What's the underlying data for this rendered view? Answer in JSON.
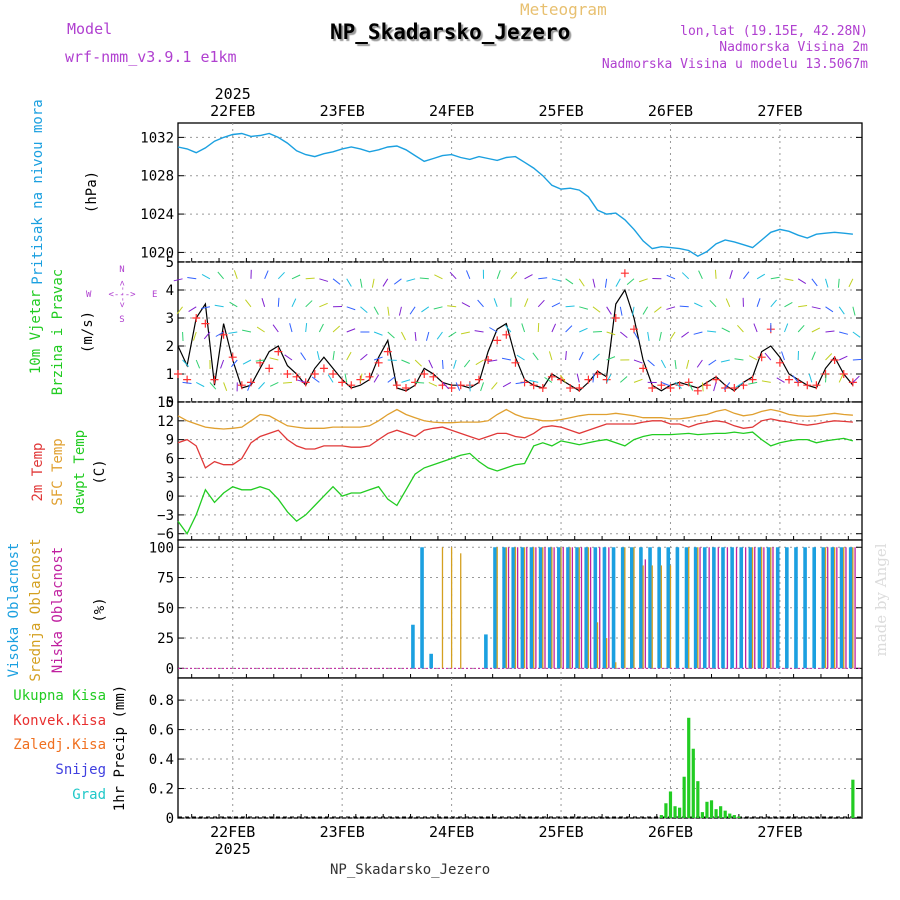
{
  "header": {
    "model_label": "Model",
    "model_name": "wrf-nmm_v3.9.1 e1km",
    "meteogram": "Meteogram",
    "station": "NP_Skadarsko_Jezero",
    "lonlat": "lon,lat (19.15E, 42.28N)",
    "elevation": "Nadmorska Visina 2m",
    "model_elevation": "Nadmorska Visina u modelu 13.5067m"
  },
  "footer_station": "NP_Skadarsko_Jezero",
  "credit": "made by Angel",
  "colors": {
    "pressure": "#1ba0e0",
    "wind_speed": "#000000",
    "gust": "#ff3030",
    "t2m": "#e03838",
    "sfc": "#e0a030",
    "dewpt": "#22cc22",
    "high_cloud": "#1ba0e0",
    "mid_cloud": "#d4a020",
    "low_cloud": "#c020a0",
    "precip": "#22cc22",
    "convective": "#e83030",
    "freezing": "#f07020",
    "snow": "#4040e0",
    "hail": "#20c8c8"
  },
  "chart_data": [
    {
      "type": "line",
      "title": "Pritisak na nivou mora",
      "ylabel": "(hPa)",
      "ylim": [
        1019,
        1033.5
      ],
      "yticks": [
        "1020",
        "1024",
        "1028",
        "1032"
      ],
      "top_xtick_labels": [
        "22FEB",
        "23FEB",
        "24FEB",
        "25FEB",
        "26FEB",
        "27FEB"
      ],
      "top_year": "2025",
      "x_unit": "hours from 21 FEB 2025 12 UTC",
      "x": [
        0,
        2,
        4,
        6,
        8,
        10,
        12,
        14,
        16,
        18,
        20,
        22,
        24,
        26,
        28,
        30,
        32,
        34,
        36,
        38,
        40,
        42,
        44,
        46,
        48,
        50,
        52,
        54,
        56,
        58,
        60,
        62,
        64,
        66,
        68,
        70,
        72,
        74,
        76,
        78,
        80,
        82,
        84,
        86,
        88,
        90,
        92,
        94,
        96,
        98,
        100,
        102,
        104,
        106,
        108,
        110,
        112,
        114,
        116,
        118,
        120,
        122,
        124,
        126,
        128,
        130,
        132,
        134,
        136,
        138,
        140,
        142,
        144,
        146,
        148
      ],
      "series": [
        {
          "name": "",
          "values": [
            1031.0,
            1030.8,
            1030.4,
            1030.9,
            1031.6,
            1032.0,
            1032.3,
            1032.4,
            1032.1,
            1032.2,
            1032.4,
            1032.0,
            1031.4,
            1030.6,
            1030.2,
            1030.0,
            1030.3,
            1030.5,
            1030.8,
            1031.0,
            1030.8,
            1030.5,
            1030.7,
            1031.0,
            1031.1,
            1030.7,
            1030.1,
            1029.5,
            1029.8,
            1030.1,
            1030.2,
            1029.9,
            1029.7,
            1030.0,
            1029.8,
            1029.6,
            1029.9,
            1030.0,
            1029.4,
            1028.8,
            1028.0,
            1027.0,
            1026.6,
            1026.7,
            1026.5,
            1025.8,
            1024.4,
            1024.0,
            1024.1,
            1023.4,
            1022.4,
            1021.2,
            1020.4,
            1020.6,
            1020.5,
            1020.4,
            1020.2,
            1019.6,
            1020.1,
            1020.9,
            1021.3,
            1021.1,
            1020.8,
            1020.5,
            1021.3,
            1022.1,
            1022.4,
            1022.2,
            1021.8,
            1021.5,
            1021.9,
            1022.0,
            1022.1,
            1022.0,
            1021.9
          ]
        }
      ]
    },
    {
      "type": "line",
      "title": "10m Vjetar Brzina i Pravac",
      "ylabel": "(m/s)",
      "compass": [
        "N",
        "W",
        "E",
        "S"
      ],
      "compass_sep": "<--->",
      "ylim": [
        0,
        5
      ],
      "yticks": [
        "0",
        "1",
        "2",
        "3",
        "4",
        "5"
      ],
      "x": [
        0,
        2,
        4,
        6,
        8,
        10,
        12,
        14,
        16,
        18,
        20,
        22,
        24,
        26,
        28,
        30,
        32,
        34,
        36,
        38,
        40,
        42,
        44,
        46,
        48,
        50,
        52,
        54,
        56,
        58,
        60,
        62,
        64,
        66,
        68,
        70,
        72,
        74,
        76,
        78,
        80,
        82,
        84,
        86,
        88,
        90,
        92,
        94,
        96,
        98,
        100,
        102,
        104,
        106,
        108,
        110,
        112,
        114,
        116,
        118,
        120,
        122,
        124,
        126,
        128,
        130,
        132,
        134,
        136,
        138,
        140,
        142,
        144,
        146,
        148
      ],
      "series": [
        {
          "name": "speed",
          "values": [
            2.0,
            1.3,
            3.0,
            3.5,
            0.6,
            2.8,
            1.5,
            0.5,
            0.6,
            1.2,
            1.8,
            2.0,
            1.3,
            1.0,
            0.6,
            1.2,
            1.6,
            1.2,
            0.8,
            0.5,
            0.6,
            0.8,
            1.6,
            2.2,
            0.5,
            0.4,
            0.6,
            1.2,
            1.0,
            0.7,
            0.6,
            0.6,
            0.5,
            0.7,
            1.8,
            2.6,
            2.8,
            1.6,
            0.8,
            0.6,
            0.5,
            1.0,
            0.8,
            0.6,
            0.4,
            0.7,
            1.1,
            0.9,
            3.5,
            4.0,
            3.0,
            1.5,
            0.6,
            0.4,
            0.6,
            0.7,
            0.6,
            0.5,
            0.7,
            0.9,
            0.6,
            0.4,
            0.7,
            0.9,
            1.8,
            2.0,
            1.6,
            1.0,
            0.8,
            0.6,
            0.5,
            1.2,
            1.6,
            1.0,
            0.6
          ]
        },
        {
          "name": "gust",
          "values": [
            1.0,
            0.8,
            3.0,
            2.8,
            0.8,
            2.4,
            1.6,
            0.6,
            0.7,
            1.4,
            1.2,
            1.8,
            1.0,
            0.9,
            0.7,
            1.0,
            1.2,
            1.0,
            0.7,
            0.6,
            0.8,
            0.9,
            1.4,
            1.8,
            0.6,
            0.5,
            0.7,
            1.0,
            0.9,
            0.6,
            0.5,
            0.6,
            0.6,
            0.8,
            1.5,
            2.2,
            2.4,
            1.4,
            0.7,
            0.6,
            0.5,
            0.9,
            0.8,
            0.5,
            0.5,
            0.8,
            1.0,
            0.8,
            3.0,
            4.6,
            2.6,
            1.2,
            0.5,
            0.6,
            0.5,
            0.6,
            0.7,
            0.4,
            0.6,
            0.8,
            0.5,
            0.5,
            0.6,
            0.8,
            1.6,
            2.6,
            1.4,
            0.8,
            0.7,
            0.6,
            0.6,
            1.0,
            1.5,
            1.0,
            0.7
          ]
        }
      ]
    },
    {
      "type": "line",
      "ylabel": "(C)",
      "ylim": [
        -7,
        15
      ],
      "yticks": [
        "−6",
        "−3",
        "0",
        "3",
        "6",
        "9",
        "12",
        "15"
      ],
      "x": [
        0,
        2,
        4,
        6,
        8,
        10,
        12,
        14,
        16,
        18,
        20,
        22,
        24,
        26,
        28,
        30,
        32,
        34,
        36,
        38,
        40,
        42,
        44,
        46,
        48,
        50,
        52,
        54,
        56,
        58,
        60,
        62,
        64,
        66,
        68,
        70,
        72,
        74,
        76,
        78,
        80,
        82,
        84,
        86,
        88,
        90,
        92,
        94,
        96,
        98,
        100,
        102,
        104,
        106,
        108,
        110,
        112,
        114,
        116,
        118,
        120,
        122,
        124,
        126,
        128,
        130,
        132,
        134,
        136,
        138,
        140,
        142,
        144,
        146,
        148
      ],
      "series": [
        {
          "name": "2m Temp",
          "values": [
            8.5,
            9.0,
            8.0,
            4.5,
            5.5,
            5.0,
            5.0,
            6.0,
            8.5,
            9.5,
            10.0,
            10.5,
            9.0,
            8.0,
            7.5,
            7.5,
            8.0,
            8.0,
            8.0,
            7.8,
            7.8,
            8.0,
            9.0,
            10.0,
            10.5,
            10.0,
            9.5,
            10.5,
            10.8,
            11.0,
            10.5,
            10.0,
            9.5,
            9.0,
            9.5,
            10.0,
            10.0,
            9.5,
            9.3,
            10.0,
            11.0,
            11.2,
            11.0,
            10.5,
            10.0,
            10.5,
            11.0,
            11.5,
            11.5,
            11.5,
            11.5,
            11.8,
            12.0,
            12.0,
            11.5,
            11.5,
            11.0,
            11.5,
            11.8,
            12.0,
            11.8,
            11.2,
            10.8,
            11.0,
            12.0,
            12.3,
            12.0,
            11.8,
            11.5,
            11.3,
            11.5,
            11.8,
            12.0,
            11.9,
            11.8
          ]
        },
        {
          "name": "SFC Temp",
          "values": [
            12.8,
            12.0,
            11.5,
            11.0,
            10.8,
            10.7,
            10.8,
            11.0,
            12.0,
            13.0,
            12.8,
            12.0,
            11.2,
            11.0,
            10.8,
            10.8,
            10.8,
            11.0,
            11.0,
            11.0,
            11.0,
            11.2,
            12.0,
            13.0,
            13.8,
            13.0,
            12.5,
            12.0,
            11.8,
            11.7,
            11.7,
            11.8,
            11.8,
            11.8,
            12.0,
            13.0,
            13.8,
            13.0,
            12.5,
            12.3,
            12.0,
            12.0,
            12.2,
            12.5,
            12.8,
            13.0,
            13.0,
            13.0,
            13.2,
            13.0,
            12.8,
            12.5,
            12.5,
            12.5,
            12.3,
            12.3,
            12.5,
            12.8,
            13.0,
            13.5,
            13.8,
            13.2,
            12.8,
            13.0,
            13.5,
            13.8,
            13.5,
            13.0,
            12.8,
            12.7,
            12.8,
            13.0,
            13.2,
            13.0,
            12.9
          ]
        },
        {
          "name": "dewpt Temp",
          "values": [
            -4.0,
            -6.0,
            -3.0,
            1.0,
            -1.0,
            0.5,
            1.5,
            1.0,
            1.0,
            1.5,
            1.0,
            -0.5,
            -2.5,
            -4.0,
            -3.0,
            -1.5,
            0.0,
            1.5,
            0.0,
            0.5,
            0.5,
            1.0,
            1.5,
            -0.5,
            -1.5,
            1.0,
            3.5,
            4.5,
            5.0,
            5.5,
            6.0,
            6.5,
            6.8,
            5.5,
            4.5,
            4.0,
            4.5,
            5.0,
            5.2,
            8.0,
            8.5,
            8.0,
            8.8,
            8.5,
            8.2,
            8.5,
            8.8,
            9.0,
            8.5,
            8.0,
            9.0,
            9.5,
            9.8,
            9.8,
            9.8,
            9.9,
            10.0,
            9.8,
            9.9,
            10.0,
            10.0,
            10.2,
            10.0,
            10.2,
            9.0,
            8.0,
            8.5,
            8.8,
            9.0,
            9.0,
            8.5,
            8.8,
            9.0,
            9.2,
            8.8
          ]
        }
      ]
    },
    {
      "type": "bar",
      "ylabel": "(%)",
      "ylim": [
        -8,
        106
      ],
      "yticks": [
        "0",
        "25",
        "50",
        "75",
        "100"
      ],
      "x": [
        0,
        2,
        4,
        6,
        8,
        10,
        12,
        14,
        16,
        18,
        20,
        22,
        24,
        26,
        28,
        30,
        32,
        34,
        36,
        38,
        40,
        42,
        44,
        46,
        48,
        50,
        52,
        54,
        56,
        58,
        60,
        62,
        64,
        66,
        68,
        70,
        72,
        74,
        76,
        78,
        80,
        82,
        84,
        86,
        88,
        90,
        92,
        94,
        96,
        98,
        100,
        102,
        104,
        106,
        108,
        110,
        112,
        114,
        116,
        118,
        120,
        122,
        124,
        126,
        128,
        130,
        132,
        134,
        136,
        138,
        140,
        142,
        144,
        146,
        148
      ],
      "series": [
        {
          "name": "Visoka Oblacnost",
          "values": [
            0,
            0,
            0,
            0,
            0,
            0,
            0,
            0,
            0,
            0,
            0,
            0,
            0,
            0,
            0,
            0,
            0,
            0,
            0,
            0,
            0,
            0,
            0,
            0,
            0,
            0,
            36,
            100,
            12,
            0,
            0,
            0,
            0,
            0,
            28,
            100,
            100,
            100,
            100,
            100,
            100,
            100,
            100,
            100,
            100,
            100,
            100,
            100,
            100,
            100,
            100,
            100,
            100,
            100,
            100,
            100,
            100,
            100,
            100,
            100,
            100,
            100,
            100,
            100,
            100,
            100,
            100,
            100,
            100,
            100,
            100,
            100,
            100,
            100,
            100
          ]
        },
        {
          "name": "Srednja Oblacnost",
          "values": [
            0,
            0,
            0,
            0,
            0,
            0,
            0,
            0,
            0,
            0,
            0,
            0,
            0,
            0,
            0,
            0,
            0,
            0,
            0,
            0,
            0,
            0,
            0,
            0,
            0,
            0,
            0,
            0,
            0,
            100,
            100,
            95,
            0,
            0,
            0,
            100,
            100,
            100,
            100,
            100,
            100,
            100,
            100,
            100,
            100,
            100,
            38,
            25,
            5,
            100,
            100,
            85,
            85,
            85,
            85,
            0,
            100,
            100,
            0,
            0,
            0,
            0,
            0,
            100,
            100,
            100,
            0,
            0,
            0,
            0,
            0,
            100,
            100,
            100,
            100
          ]
        },
        {
          "name": "Niska Oblacnost",
          "values": [
            0,
            0,
            0,
            0,
            0,
            0,
            0,
            0,
            0,
            0,
            0,
            0,
            0,
            0,
            0,
            0,
            0,
            0,
            0,
            0,
            0,
            0,
            0,
            0,
            0,
            0,
            0,
            0,
            0,
            0,
            0,
            0,
            0,
            0,
            0,
            0,
            100,
            100,
            100,
            100,
            100,
            100,
            100,
            100,
            100,
            100,
            100,
            100,
            0,
            0,
            0,
            90,
            0,
            0,
            0,
            0,
            0,
            100,
            100,
            100,
            100,
            100,
            100,
            100,
            100,
            100,
            0,
            0,
            0,
            0,
            0,
            100,
            100,
            100,
            100
          ]
        }
      ]
    },
    {
      "type": "bar",
      "ylabel": "1hr Precip (mm)",
      "ylim": [
        0,
        0.95
      ],
      "yticks": [
        "0",
        "0.2",
        "0.4",
        "0.6",
        "0.8"
      ],
      "xtick_labels": [
        "22FEB",
        "23FEB",
        "24FEB",
        "25FEB",
        "26FEB",
        "27FEB"
      ],
      "year": "2025",
      "legend": [
        "Ukupna Kisa",
        "Konvek.Kisa",
        "Zaledj.Kisa",
        "Snijeg",
        "Grad"
      ],
      "x": [
        106,
        107,
        108,
        109,
        110,
        111,
        112,
        113,
        114,
        115,
        116,
        117,
        118,
        119,
        120,
        121,
        122,
        123,
        148
      ],
      "series": [
        {
          "name": "Ukupna Kisa",
          "values": [
            0.02,
            0.1,
            0.18,
            0.08,
            0.07,
            0.28,
            0.68,
            0.47,
            0.25,
            0.04,
            0.11,
            0.12,
            0.06,
            0.08,
            0.05,
            0.03,
            0.02,
            0.01,
            0.26
          ]
        }
      ]
    }
  ]
}
